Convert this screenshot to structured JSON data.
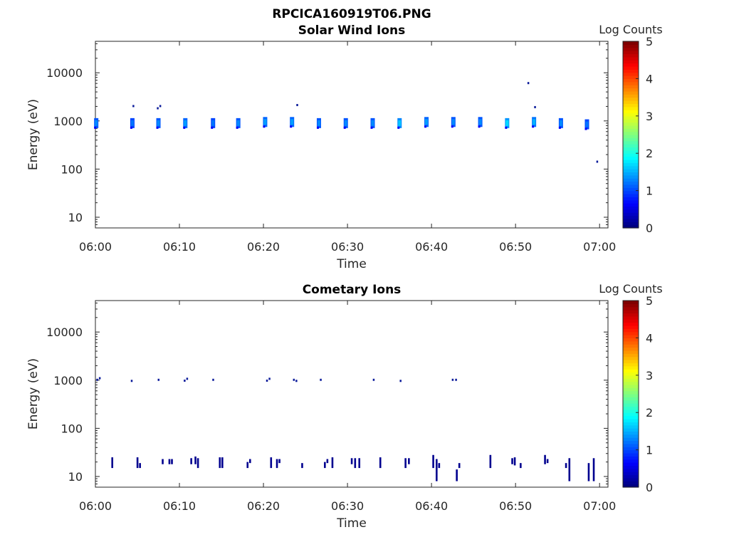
{
  "figure_title": "RPCICA160919T06.PNG",
  "chart_data": [
    {
      "type": "heatmap",
      "title": "Solar Wind Ions",
      "xlabel": "Time",
      "ylabel": "Energy (eV)",
      "y_scale": "log",
      "ylim": [
        6,
        45000
      ],
      "x_ticks": [
        "06:00",
        "06:10",
        "06:20",
        "06:30",
        "06:40",
        "06:50",
        "07:00"
      ],
      "y_ticks": [
        "10",
        "100",
        "1000",
        "10000"
      ],
      "colorbar": {
        "label": "Log Counts",
        "range": [
          0,
          5
        ],
        "ticks": [
          "0",
          "1",
          "2",
          "3",
          "4",
          "5"
        ],
        "colormap": "jet"
      },
      "blobs": [
        {
          "t": 0.1,
          "e": 900,
          "c": 1.3
        },
        {
          "t": 4.4,
          "e": 900,
          "c": 1.2
        },
        {
          "t": 7.5,
          "e": 900,
          "c": 1.3
        },
        {
          "t": 10.7,
          "e": 900,
          "c": 1.4
        },
        {
          "t": 14.0,
          "e": 900,
          "c": 1.2
        },
        {
          "t": 17.0,
          "e": 900,
          "c": 1.3
        },
        {
          "t": 20.2,
          "e": 950,
          "c": 1.4
        },
        {
          "t": 23.4,
          "e": 950,
          "c": 1.4
        },
        {
          "t": 26.6,
          "e": 900,
          "c": 1.3
        },
        {
          "t": 29.8,
          "e": 900,
          "c": 1.3
        },
        {
          "t": 33.0,
          "e": 900,
          "c": 1.3
        },
        {
          "t": 36.2,
          "e": 900,
          "c": 1.6
        },
        {
          "t": 39.4,
          "e": 950,
          "c": 1.4
        },
        {
          "t": 42.6,
          "e": 950,
          "c": 1.3
        },
        {
          "t": 45.8,
          "e": 950,
          "c": 1.3
        },
        {
          "t": 49.0,
          "e": 900,
          "c": 1.7
        },
        {
          "t": 52.2,
          "e": 950,
          "c": 1.5
        },
        {
          "t": 55.4,
          "e": 900,
          "c": 1.3
        },
        {
          "t": 58.5,
          "e": 850,
          "c": 1.2
        }
      ],
      "specks": [
        {
          "t": 4.5,
          "e": 2000
        },
        {
          "t": 7.7,
          "e": 2000
        },
        {
          "t": 7.4,
          "e": 1800
        },
        {
          "t": 24.0,
          "e": 2100
        },
        {
          "t": 51.5,
          "e": 6000
        },
        {
          "t": 52.3,
          "e": 1900
        },
        {
          "t": 59.7,
          "e": 140
        }
      ]
    },
    {
      "type": "heatmap",
      "title": "Cometary Ions",
      "xlabel": "Time",
      "ylabel": "Energy (eV)",
      "y_scale": "log",
      "ylim": [
        6,
        45000
      ],
      "x_ticks": [
        "06:00",
        "06:10",
        "06:20",
        "06:30",
        "06:40",
        "06:50",
        "07:00"
      ],
      "y_ticks": [
        "10",
        "100",
        "1000",
        "10000"
      ],
      "colorbar": {
        "label": "Log Counts",
        "range": [
          0,
          5
        ],
        "ticks": [
          "0",
          "1",
          "2",
          "3",
          "4",
          "5"
        ],
        "colormap": "jet"
      },
      "specks": [
        {
          "t": 0.2,
          "e": 1000
        },
        {
          "t": 0.5,
          "e": 1080
        },
        {
          "t": 4.3,
          "e": 950
        },
        {
          "t": 7.5,
          "e": 1000
        },
        {
          "t": 10.6,
          "e": 960
        },
        {
          "t": 10.9,
          "e": 1050
        },
        {
          "t": 14.0,
          "e": 1000
        },
        {
          "t": 20.4,
          "e": 960
        },
        {
          "t": 20.7,
          "e": 1050
        },
        {
          "t": 23.6,
          "e": 1000
        },
        {
          "t": 23.9,
          "e": 950
        },
        {
          "t": 26.8,
          "e": 1000
        },
        {
          "t": 33.1,
          "e": 1000
        },
        {
          "t": 36.3,
          "e": 950
        },
        {
          "t": 42.5,
          "e": 1000
        },
        {
          "t": 42.9,
          "e": 1000
        }
      ],
      "bars": [
        {
          "t": 2.0,
          "lo": 15,
          "hi": 25
        },
        {
          "t": 5.0,
          "lo": 15,
          "hi": 25
        },
        {
          "t": 5.3,
          "lo": 15,
          "hi": 19
        },
        {
          "t": 8.0,
          "lo": 18,
          "hi": 23
        },
        {
          "t": 8.8,
          "lo": 18,
          "hi": 23
        },
        {
          "t": 9.1,
          "lo": 18,
          "hi": 23
        },
        {
          "t": 11.4,
          "lo": 18,
          "hi": 24
        },
        {
          "t": 11.9,
          "lo": 18,
          "hi": 26
        },
        {
          "t": 12.2,
          "lo": 15,
          "hi": 24
        },
        {
          "t": 14.8,
          "lo": 15,
          "hi": 25
        },
        {
          "t": 15.1,
          "lo": 15,
          "hi": 25
        },
        {
          "t": 18.1,
          "lo": 15,
          "hi": 20
        },
        {
          "t": 18.4,
          "lo": 19,
          "hi": 23
        },
        {
          "t": 20.9,
          "lo": 15,
          "hi": 25
        },
        {
          "t": 21.6,
          "lo": 15,
          "hi": 23
        },
        {
          "t": 21.9,
          "lo": 19,
          "hi": 23
        },
        {
          "t": 24.6,
          "lo": 15,
          "hi": 19
        },
        {
          "t": 27.3,
          "lo": 15,
          "hi": 20
        },
        {
          "t": 27.6,
          "lo": 19,
          "hi": 23
        },
        {
          "t": 28.2,
          "lo": 15,
          "hi": 25
        },
        {
          "t": 30.5,
          "lo": 18,
          "hi": 24
        },
        {
          "t": 30.9,
          "lo": 15,
          "hi": 24
        },
        {
          "t": 31.4,
          "lo": 15,
          "hi": 24
        },
        {
          "t": 33.9,
          "lo": 15,
          "hi": 25
        },
        {
          "t": 36.9,
          "lo": 15,
          "hi": 24
        },
        {
          "t": 37.3,
          "lo": 18,
          "hi": 24
        },
        {
          "t": 40.2,
          "lo": 15,
          "hi": 28
        },
        {
          "t": 40.6,
          "lo": 8,
          "hi": 23
        },
        {
          "t": 40.9,
          "lo": 15,
          "hi": 19
        },
        {
          "t": 43.0,
          "lo": 8,
          "hi": 14
        },
        {
          "t": 43.3,
          "lo": 15,
          "hi": 19
        },
        {
          "t": 47.0,
          "lo": 15,
          "hi": 28
        },
        {
          "t": 49.6,
          "lo": 18,
          "hi": 24
        },
        {
          "t": 49.9,
          "lo": 17,
          "hi": 25
        },
        {
          "t": 50.6,
          "lo": 15,
          "hi": 19
        },
        {
          "t": 53.5,
          "lo": 18,
          "hi": 28
        },
        {
          "t": 53.8,
          "lo": 19,
          "hi": 23
        },
        {
          "t": 56.0,
          "lo": 15,
          "hi": 19
        },
        {
          "t": 56.4,
          "lo": 8,
          "hi": 24
        },
        {
          "t": 58.7,
          "lo": 8,
          "hi": 19
        },
        {
          "t": 59.3,
          "lo": 8,
          "hi": 24
        }
      ]
    }
  ]
}
